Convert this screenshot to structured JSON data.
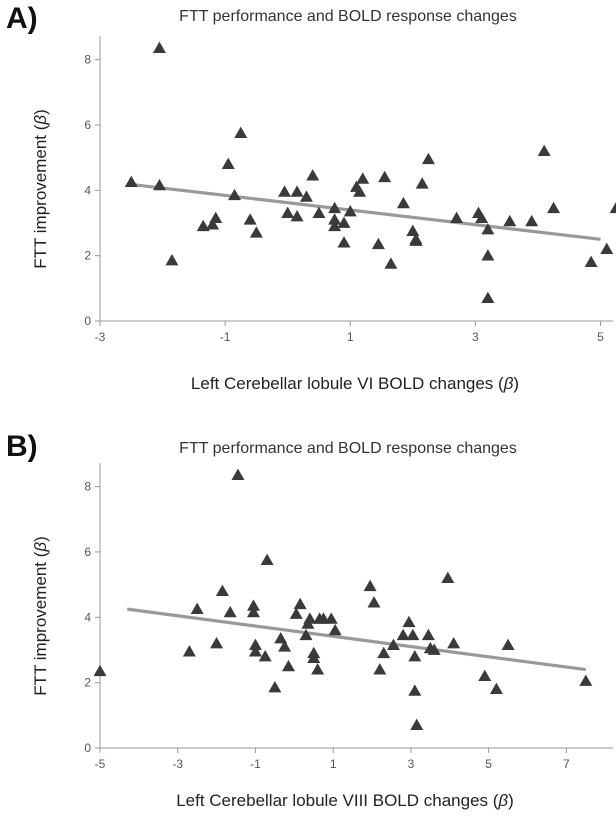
{
  "panels": [
    {
      "letter": "A)",
      "title": "FTT performance and BOLD response changes",
      "xlabel_prefix": "Left Cerebellar lobule VI BOLD changes (",
      "xlabel_symbol": "β",
      "xlabel_suffix": ")",
      "ylabel_prefix": "FTT improvement (",
      "ylabel_symbol": "β",
      "ylabel_suffix": ")"
    },
    {
      "letter": "B)",
      "title": "FTT performance and BOLD response changes",
      "xlabel_prefix": "Left Cerebellar lobule VIII BOLD changes (",
      "xlabel_symbol": "β",
      "xlabel_suffix": ")",
      "ylabel_prefix": "FTT improvement (",
      "ylabel_symbol": "β",
      "ylabel_suffix": ")"
    }
  ],
  "chart_data": [
    {
      "type": "scatter",
      "title": "FTT performance and BOLD response changes",
      "xlabel": "Left Cerebellar lobule VI BOLD changes (β)",
      "ylabel": "FTT improvement (β)",
      "xlim": [
        -3,
        5.2
      ],
      "ylim": [
        0,
        8.6
      ],
      "xticks": [
        -3,
        -1,
        1,
        3,
        5
      ],
      "yticks": [
        0,
        2,
        4,
        6,
        8
      ],
      "marker": "triangle",
      "marker_color": "#3a3a3a",
      "fit_line_color": "#999999",
      "fit_line": {
        "x": [
          -2.5,
          5.0
        ],
        "y": [
          4.18,
          2.5
        ]
      },
      "points": [
        [
          -2.5,
          4.25
        ],
        [
          -2.05,
          8.35
        ],
        [
          -2.05,
          4.15
        ],
        [
          -1.85,
          1.85
        ],
        [
          -1.35,
          2.9
        ],
        [
          -1.2,
          2.95
        ],
        [
          -1.15,
          3.15
        ],
        [
          -0.95,
          4.8
        ],
        [
          -0.85,
          3.85
        ],
        [
          -0.75,
          5.75
        ],
        [
          -0.6,
          3.1
        ],
        [
          -0.5,
          2.7
        ],
        [
          -0.05,
          3.95
        ],
        [
          0.0,
          3.3
        ],
        [
          0.15,
          3.95
        ],
        [
          0.15,
          3.2
        ],
        [
          0.3,
          3.8
        ],
        [
          0.4,
          4.45
        ],
        [
          0.5,
          3.3
        ],
        [
          0.75,
          3.45
        ],
        [
          0.75,
          3.1
        ],
        [
          0.75,
          2.9
        ],
        [
          0.9,
          3.0
        ],
        [
          0.9,
          2.4
        ],
        [
          1.0,
          3.35
        ],
        [
          1.1,
          4.1
        ],
        [
          1.15,
          3.95
        ],
        [
          1.2,
          4.35
        ],
        [
          1.45,
          2.35
        ],
        [
          1.55,
          4.4
        ],
        [
          1.65,
          1.75
        ],
        [
          1.85,
          3.6
        ],
        [
          2.0,
          2.75
        ],
        [
          2.05,
          2.5
        ],
        [
          2.05,
          2.45
        ],
        [
          2.15,
          4.2
        ],
        [
          2.25,
          4.95
        ],
        [
          2.7,
          3.15
        ],
        [
          3.05,
          3.3
        ],
        [
          3.1,
          3.15
        ],
        [
          3.2,
          2.8
        ],
        [
          3.2,
          2.0
        ],
        [
          3.2,
          0.7
        ],
        [
          3.55,
          3.05
        ],
        [
          3.9,
          3.05
        ],
        [
          4.1,
          5.2
        ],
        [
          4.25,
          3.45
        ],
        [
          4.85,
          1.8
        ],
        [
          5.1,
          2.2
        ],
        [
          5.25,
          3.45
        ]
      ]
    },
    {
      "type": "scatter",
      "title": "FTT performance and BOLD response changes",
      "xlabel": "Left Cerebellar lobule VIII BOLD changes (β)",
      "ylabel": "FTT improvement (β)",
      "xlim": [
        -5,
        8.2
      ],
      "ylim": [
        0,
        8.6
      ],
      "xticks": [
        -5,
        -3,
        -1,
        1,
        3,
        5,
        7
      ],
      "yticks": [
        0,
        2,
        4,
        6,
        8
      ],
      "marker": "triangle",
      "marker_color": "#3a3a3a",
      "fit_line_color": "#999999",
      "fit_line": {
        "x": [
          -4.3,
          7.5
        ],
        "y": [
          4.25,
          2.4
        ]
      },
      "points": [
        [
          -5.0,
          2.35
        ],
        [
          -2.7,
          2.95
        ],
        [
          -2.5,
          4.25
        ],
        [
          -2.0,
          3.2
        ],
        [
          -1.85,
          4.8
        ],
        [
          -1.65,
          4.15
        ],
        [
          -1.45,
          8.35
        ],
        [
          -1.05,
          4.35
        ],
        [
          -1.05,
          4.15
        ],
        [
          -1.0,
          3.15
        ],
        [
          -1.0,
          2.95
        ],
        [
          -0.75,
          2.8
        ],
        [
          -0.7,
          5.75
        ],
        [
          -0.5,
          1.85
        ],
        [
          -0.35,
          3.35
        ],
        [
          -0.25,
          3.1
        ],
        [
          -0.15,
          2.5
        ],
        [
          0.05,
          4.1
        ],
        [
          0.15,
          4.4
        ],
        [
          0.3,
          3.45
        ],
        [
          0.35,
          3.8
        ],
        [
          0.4,
          3.95
        ],
        [
          0.5,
          2.9
        ],
        [
          0.5,
          2.75
        ],
        [
          0.6,
          2.4
        ],
        [
          0.65,
          3.95
        ],
        [
          0.75,
          3.95
        ],
        [
          0.95,
          3.95
        ],
        [
          1.05,
          3.6
        ],
        [
          1.95,
          4.95
        ],
        [
          2.05,
          4.45
        ],
        [
          2.2,
          2.4
        ],
        [
          2.3,
          2.9
        ],
        [
          2.55,
          3.15
        ],
        [
          2.8,
          3.45
        ],
        [
          2.95,
          3.85
        ],
        [
          3.05,
          3.45
        ],
        [
          3.1,
          2.8
        ],
        [
          3.1,
          1.75
        ],
        [
          3.15,
          0.7
        ],
        [
          3.45,
          3.45
        ],
        [
          3.5,
          3.05
        ],
        [
          3.6,
          3.0
        ],
        [
          3.95,
          5.2
        ],
        [
          4.1,
          3.2
        ],
        [
          4.9,
          2.2
        ],
        [
          5.2,
          1.8
        ],
        [
          5.5,
          3.15
        ],
        [
          7.5,
          2.05
        ]
      ]
    }
  ]
}
